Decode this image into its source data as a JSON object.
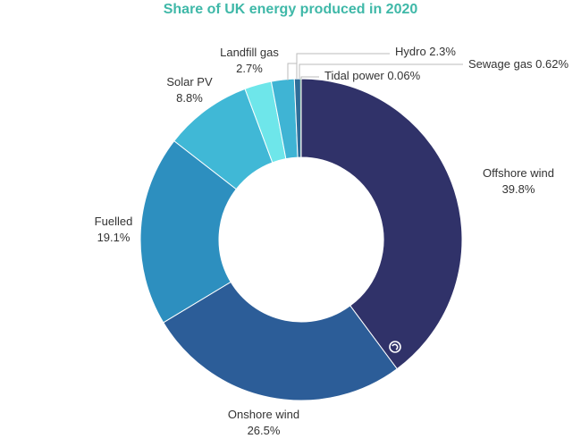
{
  "chart_data": {
    "type": "pie",
    "donut": true,
    "title": "Share of UK energy produced in 2020",
    "title_color": "#3fb8a8",
    "slices": [
      {
        "name": "Offshore wind",
        "value": 39.8,
        "label": "39.8%",
        "color": "#303269"
      },
      {
        "name": "Onshore wind",
        "value": 26.5,
        "label": "26.5%",
        "color": "#2c5d98"
      },
      {
        "name": "Fuelled",
        "value": 19.1,
        "label": "19.1%",
        "color": "#2d8fbf"
      },
      {
        "name": "Solar PV",
        "value": 8.8,
        "label": "8.8%",
        "color": "#40b8d6"
      },
      {
        "name": "Landfill gas",
        "value": 2.7,
        "label": "2.7%",
        "color": "#6ee6ea"
      },
      {
        "name": "Hydro",
        "value": 2.3,
        "label": "2.3%",
        "color": "#3fb4d4"
      },
      {
        "name": "Sewage gas",
        "value": 0.62,
        "label": "0.62%",
        "color": "#2f6d98"
      },
      {
        "name": "Tidal power",
        "value": 0.06,
        "label": "0.06%",
        "color": "#5aa36a"
      }
    ]
  }
}
